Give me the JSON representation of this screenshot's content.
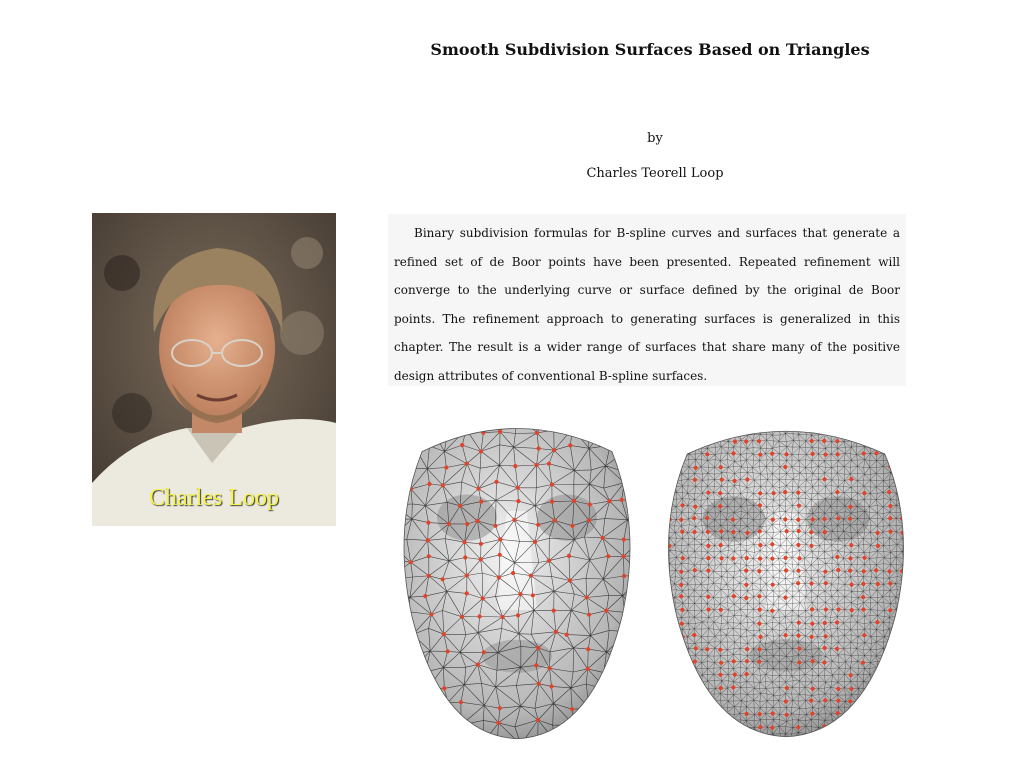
{
  "paper": {
    "title": "Smooth Subdivision Surfaces Based on Triangles",
    "by": "by",
    "author": "Charles Teorell Loop",
    "abstract": "Binary subdivision formulas for B-spline curves and surfaces that generate a refined set of de Boor points have been presented. Repeated refinement will converge to the underlying curve or surface defined by the original de Boor points. The refinement approach to generating surfaces is generalized in this chapter. The result is a wider range of surfaces that share many of the positive design attributes of conventional B-spline surfaces."
  },
  "photo": {
    "caption": "Charles Loop",
    "caption_color": "#f5f44a"
  },
  "figures": {
    "left_face": "coarse-triangle-mesh-face-icon",
    "right_face": "refined-triangle-mesh-face-icon",
    "control_point_color": "#e0442a"
  }
}
